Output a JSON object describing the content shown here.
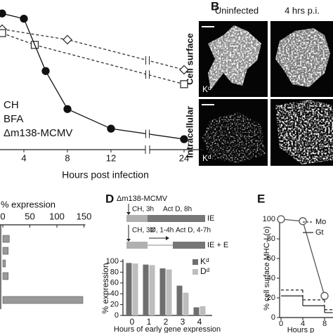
{
  "chart_data": [
    {
      "type": "line",
      "x_label": "Hours post infection",
      "xlim": [
        0,
        24
      ],
      "xticks": [
        4,
        8,
        12,
        24
      ],
      "ylim": [
        0,
        110
      ],
      "axis_break": 18,
      "series": [
        {
          "name": "CH",
          "marker": "diamond",
          "dash": true,
          "color": "#333333",
          "x": [
            2,
            8,
            24
          ],
          "values": [
            92,
            84,
            61
          ]
        },
        {
          "name": "BFA",
          "marker": "square",
          "dash": true,
          "color": "#333333",
          "x": [
            2,
            5,
            24
          ],
          "values": [
            89,
            80,
            50
          ]
        },
        {
          "name": "Δm138-MCMV",
          "marker": "circle",
          "filled": true,
          "color": "#111111",
          "x": [
            2,
            4,
            6,
            8,
            12,
            24
          ],
          "values": [
            104,
            100,
            60,
            31,
            16,
            8
          ]
        }
      ]
    },
    {
      "type": "hbar",
      "x_label": "% expression",
      "xlim": [
        0,
        150
      ],
      "xticks": [
        0,
        50,
        100,
        150
      ],
      "color": "#999999",
      "categories": [
        null,
        null,
        null,
        null,
        null
      ],
      "values": [
        12,
        10,
        5,
        10,
        148
      ]
    },
    {
      "type": "bar",
      "label": "D",
      "title": "Δm138-MCMV",
      "schematic": [
        {
          "steps": [
            "CH, 3h",
            "Act D, 8h"
          ],
          "result": "IE"
        },
        {
          "steps": [
            "CH, 3h",
            "Ø, 1-4h",
            "Act D, 4-7h"
          ],
          "result": "IE + E"
        }
      ],
      "y_label": "% expression",
      "x_label": "Hours of early gene expression",
      "categories": [
        "0",
        "1",
        "2",
        "3",
        "4"
      ],
      "ylim": [
        0,
        100
      ],
      "yticks": [
        0,
        20,
        40,
        60,
        80,
        100
      ],
      "series": [
        {
          "name": "Kᵈ",
          "color": "#6e6e6e",
          "values": [
            97,
            94,
            87,
            55,
            15
          ]
        },
        {
          "name": "Dᵈ",
          "color": "#bdbdbd",
          "values": [
            96,
            93,
            85,
            42,
            17
          ]
        }
      ]
    },
    {
      "type": "line",
      "label": "E",
      "y_label": "% cell surface MHC-I (o)",
      "x_label": "Hours p",
      "xlim": [
        0,
        9.5
      ],
      "xticks": [
        0,
        4,
        8
      ],
      "ylim": [
        0,
        100
      ],
      "yticks": [
        0,
        20,
        40,
        60,
        80,
        100
      ],
      "series": [
        {
          "marker": "circle",
          "color": "#555555",
          "x": [
            0,
            4,
            8
          ],
          "values": [
            100,
            98,
            22
          ]
        },
        {
          "name": "Mo",
          "step": true,
          "dash": true,
          "color": "#333333",
          "x": [
            0,
            4,
            8
          ],
          "values": [
            28,
            18,
            8
          ]
        },
        {
          "name": "Gt",
          "step": true,
          "color": "#333333",
          "x": [
            0,
            4,
            8
          ],
          "values": [
            22,
            12,
            5
          ]
        }
      ]
    }
  ],
  "micrographs": {
    "label": "B",
    "columns": [
      "Uninfected",
      "4 hrs p.i."
    ],
    "rows": [
      "Cell surface",
      "Intracellular"
    ],
    "stain": "Kᵈ"
  }
}
